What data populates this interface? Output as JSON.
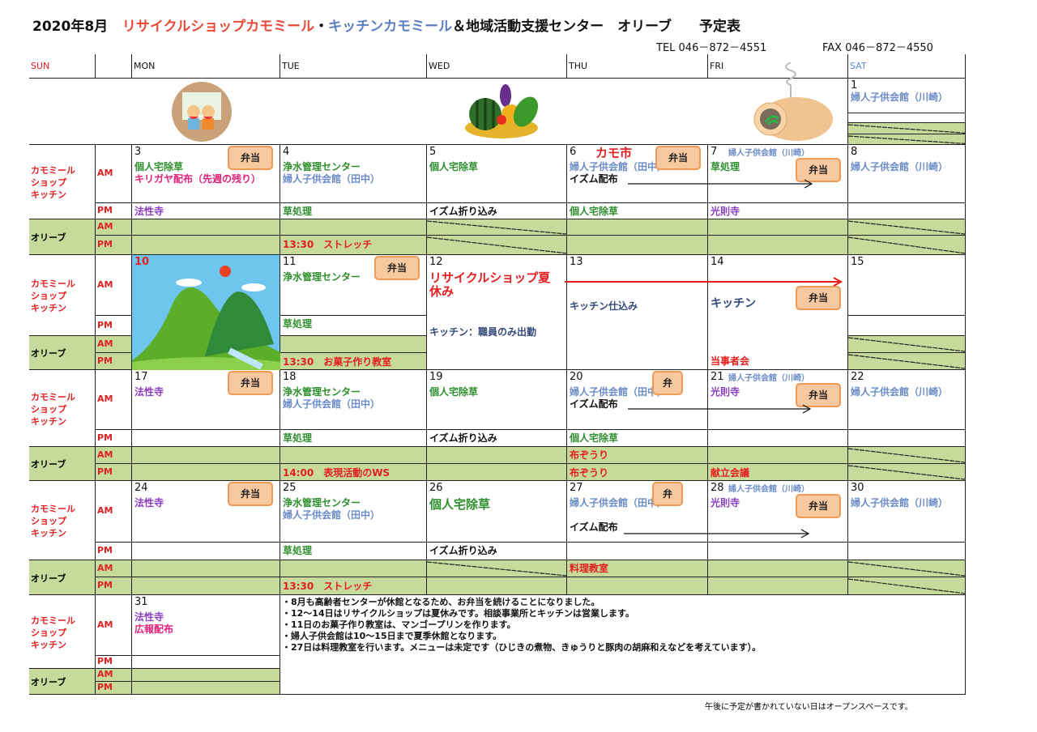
{
  "title": {
    "year_month": "2020年8月",
    "shop": "リサイクルショップカモミール",
    "sep": "・",
    "kitchen": "キッチンカモミール",
    "rest": "＆地域活動支援センター　オリーブ　　予定表"
  },
  "contact": {
    "tel": "TEL  046－872－4551",
    "fax": "FAX  046－872－4550"
  },
  "colors": {
    "g": "#2f8f2f",
    "p": "#e0207a",
    "b": "#6b8cc7",
    "v": "#8a3fc0",
    "r": "#e41e1e",
    "n": "#33497a",
    "k": "#111111",
    "green_fill": "#c6da9b",
    "bento_fill": "#f8c9a0",
    "sat": "#5b8bd0"
  },
  "header": [
    "SUN",
    "",
    "MON",
    "TUE",
    "WED",
    "THU",
    "FRI",
    "SAT"
  ],
  "row_labels": {
    "shop": "カモミール\nショップ\nキッチン",
    "olive": "オリーブ",
    "am": "AM",
    "pm": "PM"
  },
  "first_row": {
    "sat_num": "1",
    "sat_text": "婦人子供会館（川崎）",
    "images": [
      "kids-eating-watermelon",
      "vegetable-basket",
      "mosquito-coil-pig"
    ]
  },
  "weeks": [
    {
      "days": [
        {
          "num": "3",
          "am": [
            [
              "個人宅除草",
              "g"
            ],
            [
              "キリガヤ配布（先週の残り）",
              "p"
            ]
          ],
          "pm": [
            "法性寺",
            "v"
          ],
          "bento": "弁当"
        },
        {
          "num": "4",
          "am": [
            [
              "浄水管理センター",
              "g"
            ],
            [
              "婦人子供会館（田中）",
              "b"
            ]
          ],
          "pm": [
            "草処理",
            "g"
          ],
          "opm": [
            "13:30　ストレッチ",
            "r"
          ]
        },
        {
          "num": "5",
          "am": [
            [
              "個人宅除草",
              "g"
            ]
          ],
          "pm": [
            "イズム折り込み",
            "k"
          ],
          "slash": true
        },
        {
          "num": "6",
          "head": [
            "カモ市",
            "r"
          ],
          "am": [
            [
              "婦人子供会館（田中）",
              "b"
            ],
            [
              "イズム配布",
              "k"
            ]
          ],
          "pm": [
            "個人宅除草",
            "g"
          ],
          "bento": "弁当"
        },
        {
          "num": "7",
          "head": [
            "婦人子供会館（川崎）",
            "b"
          ],
          "am": [
            [
              "草処理",
              "g"
            ]
          ],
          "pm": [
            "光則寺",
            "v"
          ],
          "bento": "弁当",
          "bento_low": true
        },
        {
          "num": "8",
          "am": [
            [
              "婦人子供会館（川崎）",
              "b"
            ]
          ],
          "slash": true
        }
      ]
    },
    {
      "days": [
        {
          "num": "10",
          "image": "hills-landscape"
        },
        {
          "num": "11",
          "am": [
            [
              "浄水管理センター",
              "g"
            ]
          ],
          "pm": [
            "草処理",
            "g"
          ],
          "opm": [
            "13:30　お菓子作り教室",
            "r"
          ],
          "bento": "弁当"
        },
        {
          "num": "12",
          "merged": true,
          "am": [
            [
              "リサイクルショップ夏",
              "r"
            ],
            [
              "休み",
              "r"
            ]
          ],
          "extra": [
            "キッチン：職員のみ出勤",
            "n"
          ]
        },
        {
          "num": "13",
          "merged": true,
          "mid": [
            "キッチン仕込み",
            "n"
          ]
        },
        {
          "num": "14",
          "merged": true,
          "mid": [
            "キッチン",
            "n"
          ],
          "bottom": [
            "当事者会",
            "r"
          ],
          "bento": "弁当",
          "bento_low": true
        },
        {
          "num": "15",
          "slash": true
        }
      ]
    },
    {
      "days": [
        {
          "num": "17",
          "am": [
            [
              "法性寺",
              "v"
            ]
          ],
          "bento": "弁当"
        },
        {
          "num": "18",
          "am": [
            [
              "浄水管理センター",
              "g"
            ],
            [
              "婦人子供会館（田中）",
              "b"
            ]
          ],
          "pm": [
            "草処理",
            "g"
          ],
          "opm": [
            "14:00　表現活動のWS",
            "r"
          ]
        },
        {
          "num": "19",
          "am": [
            [
              "個人宅除草",
              "g"
            ]
          ],
          "pm": [
            "イズム折り込み",
            "k"
          ]
        },
        {
          "num": "20",
          "am": [
            [
              "婦人子供会館（田中）",
              "b"
            ],
            [
              "イズム配布",
              "k"
            ]
          ],
          "pm": [
            "個人宅除草",
            "g"
          ],
          "oam": [
            "布ぞうり",
            "r"
          ],
          "opm": [
            "布ぞうり",
            "r"
          ],
          "bento": "弁"
        },
        {
          "num": "21",
          "head": [
            "婦人子供会館（川崎）",
            "b"
          ],
          "am": [
            [
              "光則寺",
              "v"
            ]
          ],
          "opm": [
            "献立会議",
            "r"
          ],
          "bento": "弁当",
          "bento_low": true
        },
        {
          "num": "22",
          "am": [
            [
              "婦人子供会館（川崎）",
              "b"
            ]
          ],
          "slash": true
        }
      ]
    },
    {
      "days": [
        {
          "num": "24",
          "am": [
            [
              "法性寺",
              "v"
            ]
          ],
          "bento": "弁当"
        },
        {
          "num": "25",
          "am": [
            [
              "浄水管理センター",
              "g"
            ],
            [
              "婦人子供会館（田中）",
              "b"
            ]
          ],
          "pm": [
            "草処理",
            "g"
          ],
          "opm": [
            "13:30　ストレッチ",
            "r"
          ]
        },
        {
          "num": "26",
          "am": [
            [
              "個人宅除草",
              "g"
            ]
          ],
          "pm": [
            "イズム折り込み",
            "k"
          ],
          "slash_am": true
        },
        {
          "num": "27",
          "am": [
            [
              "婦人子供会館（田中）",
              "b"
            ],
            [
              "",
              ""
            ],
            [
              "イズム配布",
              "k"
            ]
          ],
          "oam": [
            "料理教室",
            "r"
          ],
          "bento": "弁"
        },
        {
          "num": "28",
          "head": [
            "婦人子供会館（川崎）",
            "b"
          ],
          "am": [
            [
              "光則寺",
              "v"
            ]
          ],
          "bento": "弁当",
          "bento_low": true
        },
        {
          "num": "30",
          "am": [
            [
              "婦人子供会館（川崎）",
              "b"
            ]
          ],
          "slash": true
        }
      ]
    },
    {
      "days": [
        {
          "num": "31",
          "am": [
            [
              "法性寺",
              "v"
            ],
            [
              "広報配布",
              "p"
            ]
          ]
        }
      ]
    }
  ],
  "notes": [
    "・8月も高齢者センターが休館となるため、お弁当を続けることになりました。",
    "・12～14日はリサイクルショップは夏休みです。相談事業所とキッチンは営業します。",
    "・11日のお菓子作り教室は、マンゴープリンを作ります。",
    "・婦人子供会館は10～15日まで夏季休館となります。",
    "・27日は料理教室を行います。メニューは未定です（ひじきの煮物、きゅうりと豚肉の胡麻和えなどを考えています）。"
  ],
  "footer": "午後に予定が書かれていない日はオープンスペースです。"
}
